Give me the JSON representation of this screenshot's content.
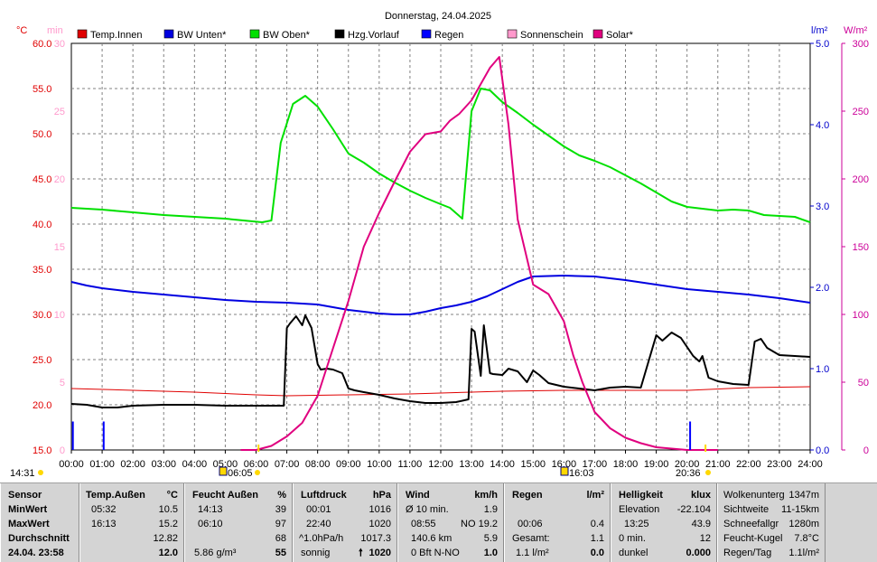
{
  "title": "Donnerstag, 24.04.2025",
  "axis_units": {
    "left_c": "°C",
    "left_min": "min",
    "right_lm2": "l/m²",
    "right_wm2": "W/m²"
  },
  "colors": {
    "temp_innen": "#e00000",
    "bw_unten": "#0000e0",
    "bw_oben": "#00e000",
    "hzg_vorlauf": "#000000",
    "regen": "#0000ff",
    "sonnenschein": "#ff99cc",
    "solar": "#e0007f",
    "axis_c": "#e00000",
    "axis_min": "#ff99cc",
    "axis_lm2": "#0000cc",
    "axis_wm2": "#cc0099"
  },
  "event_labels": {
    "sunrise": "06:05",
    "sunset": "20:36",
    "t1": "14:31",
    "t2": "16:03"
  },
  "chart_data": {
    "type": "line",
    "title": "Donnerstag, 24.04.2025",
    "x_ticks": [
      "00:00",
      "01:00",
      "02:00",
      "03:00",
      "04:00",
      "05:00",
      "06:00",
      "07:00",
      "08:00",
      "09:00",
      "10:00",
      "11:00",
      "12:00",
      "13:00",
      "14:00",
      "15:00",
      "16:00",
      "17:00",
      "18:00",
      "19:00",
      "20:00",
      "21:00",
      "22:00",
      "23:00",
      "24:00"
    ],
    "xlim": [
      0,
      24
    ],
    "y_axes": {
      "temp_c": {
        "ylim": [
          15,
          60
        ],
        "ticks": [
          "15.0",
          "20.0",
          "25.0",
          "30.0",
          "35.0",
          "40.0",
          "45.0",
          "50.0",
          "55.0",
          "60.0"
        ]
      },
      "sun_min": {
        "ylim": [
          0,
          30
        ],
        "ticks": [
          "0",
          "5",
          "10",
          "15",
          "20",
          "25",
          "30"
        ]
      },
      "rain_lm2": {
        "ylim": [
          0,
          5
        ],
        "ticks": [
          "0.0",
          "1.0",
          "2.0",
          "3.0",
          "4.0",
          "5.0"
        ]
      },
      "solar_wm2": {
        "ylim": [
          0,
          300
        ],
        "ticks": [
          "0",
          "50",
          "100",
          "150",
          "200",
          "250",
          "300"
        ]
      }
    },
    "legend": [
      "Temp.Innen",
      "BW Unten*",
      "BW Oben*",
      "Hzg.Vorlauf",
      "Regen",
      "Sonnenschein",
      "Solar*"
    ],
    "legend_placement": "top",
    "grid": true,
    "series": [
      {
        "name": "Temp.Innen",
        "axis": "temp_c",
        "color": "#e00000",
        "x": [
          0,
          2,
          4,
          6,
          7,
          9,
          11,
          12,
          13,
          14,
          16,
          18,
          20,
          22,
          24
        ],
        "y": [
          21.8,
          21.6,
          21.4,
          21.1,
          21.0,
          21.1,
          21.2,
          21.3,
          21.4,
          21.5,
          21.6,
          21.6,
          21.6,
          21.9,
          22.0
        ]
      },
      {
        "name": "BW Unten*",
        "axis": "temp_c",
        "color": "#0000e0",
        "x": [
          0,
          0.5,
          1,
          2,
          3,
          4,
          5,
          6,
          7,
          8,
          8.5,
          9,
          9.5,
          10,
          10.5,
          11,
          11.5,
          12,
          12.5,
          13,
          13.5,
          14,
          14.5,
          15,
          16,
          17,
          18,
          19,
          20,
          21,
          22,
          23,
          24
        ],
        "y": [
          33.6,
          33.2,
          32.9,
          32.5,
          32.2,
          31.9,
          31.6,
          31.4,
          31.3,
          31.1,
          30.8,
          30.5,
          30.3,
          30.1,
          30.0,
          30.0,
          30.3,
          30.7,
          31.0,
          31.4,
          32.0,
          32.8,
          33.6,
          34.2,
          34.3,
          34.2,
          33.8,
          33.3,
          32.8,
          32.5,
          32.2,
          31.8,
          31.3
        ]
      },
      {
        "name": "BW Oben*",
        "axis": "temp_c",
        "color": "#00e000",
        "x": [
          0,
          1,
          2,
          3,
          4,
          5,
          6.2,
          6.5,
          6.8,
          7.2,
          7.6,
          8,
          8.5,
          9,
          9.5,
          10,
          10.5,
          11,
          11.5,
          12,
          12.3,
          12.7,
          13,
          13.3,
          13.6,
          14,
          14.5,
          15,
          15.5,
          16,
          16.5,
          17,
          17.5,
          18,
          18.5,
          19,
          19.5,
          20,
          20.5,
          21,
          21.5,
          22,
          22.5,
          23,
          23.5,
          24
        ],
        "y": [
          41.8,
          41.6,
          41.3,
          41.0,
          40.8,
          40.6,
          40.2,
          40.4,
          49.0,
          53.3,
          54.2,
          53.0,
          50.5,
          47.8,
          46.8,
          45.6,
          44.6,
          43.7,
          42.9,
          42.2,
          41.8,
          40.6,
          52.5,
          55.0,
          54.8,
          53.5,
          52.3,
          51.0,
          49.8,
          48.6,
          47.6,
          47.0,
          46.3,
          45.4,
          44.5,
          43.5,
          42.5,
          41.9,
          41.7,
          41.5,
          41.6,
          41.5,
          41.0,
          40.9,
          40.8,
          40.2
        ]
      },
      {
        "name": "Hzg.Vorlauf",
        "axis": "temp_c",
        "color": "#000000",
        "x": [
          0,
          0.5,
          1,
          1.5,
          2,
          3,
          4,
          5,
          6,
          6.9,
          7.0,
          7.1,
          7.3,
          7.5,
          7.6,
          7.8,
          8.0,
          8.1,
          8.3,
          8.5,
          8.8,
          9.0,
          9.2,
          9.5,
          10,
          10.5,
          11,
          11.5,
          12,
          12.5,
          12.9,
          13.0,
          13.1,
          13.3,
          13.4,
          13.5,
          13.6,
          13.7,
          14.0,
          14.2,
          14.5,
          14.8,
          15.0,
          15.2,
          15.5,
          16,
          16.5,
          17,
          17.5,
          18,
          18.5,
          19.0,
          19.2,
          19.5,
          19.8,
          20.2,
          20.4,
          20.5,
          20.7,
          21,
          21.5,
          22,
          22.2,
          22.4,
          22.6,
          23,
          23.5,
          24
        ],
        "y": [
          20.1,
          20.0,
          19.7,
          19.7,
          19.9,
          20.0,
          20.0,
          19.9,
          19.9,
          19.9,
          28.5,
          29.0,
          29.8,
          28.8,
          29.9,
          28.5,
          24.5,
          23.9,
          24.0,
          23.9,
          23.5,
          21.8,
          21.6,
          21.4,
          21.1,
          20.7,
          20.4,
          20.2,
          20.2,
          20.3,
          20.6,
          28.4,
          28.1,
          23.2,
          28.8,
          26.1,
          23.5,
          23.4,
          23.3,
          24.0,
          23.7,
          22.5,
          23.8,
          23.3,
          22.4,
          22.0,
          21.8,
          21.6,
          21.9,
          22.0,
          21.9,
          27.7,
          27.1,
          28.0,
          27.4,
          25.4,
          24.8,
          25.4,
          23.0,
          22.6,
          22.3,
          22.2,
          27.0,
          27.3,
          26.3,
          25.5,
          25.4,
          25.3
        ]
      },
      {
        "name": "Solar*",
        "axis": "solar_wm2",
        "color": "#e0007f",
        "x": [
          5.5,
          6,
          6.5,
          7,
          7.5,
          8,
          8.5,
          9,
          9.5,
          10,
          10.5,
          11,
          11.5,
          12,
          12.3,
          12.6,
          13,
          13.3,
          13.6,
          13.9,
          14.2,
          14.5,
          15,
          15.5,
          16,
          16.3,
          16.6,
          17,
          17.5,
          18,
          18.5,
          19,
          19.5,
          20,
          20.5,
          21
        ],
        "y": [
          0,
          0,
          3,
          10,
          20,
          40,
          75,
          110,
          150,
          175,
          198,
          220,
          233,
          235,
          243,
          248,
          258,
          270,
          282,
          290,
          240,
          170,
          122,
          115,
          95,
          70,
          50,
          28,
          16,
          9,
          5,
          2,
          1,
          0,
          0,
          0
        ]
      },
      {
        "name": "Regen",
        "axis": "rain_lm2",
        "color": "#0000ff",
        "type": "bars",
        "x": [
          0.05,
          1.05,
          20.1
        ],
        "y": [
          0.35,
          0.35,
          0.35
        ]
      }
    ],
    "markers": [
      {
        "label": "06:05",
        "x": 6.08
      },
      {
        "label": "20:36",
        "x": 20.6
      }
    ]
  },
  "table": {
    "sensor": {
      "header": "Sensor",
      "rows": [
        "MinWert",
        "MaxWert",
        "Durchschnitt",
        "24.04. 23:58"
      ]
    },
    "temp_aussen": {
      "header": "Temp.Außen",
      "unit": "°C",
      "rows": [
        [
          "05:32",
          "10.5"
        ],
        [
          "16:13",
          "15.2"
        ],
        [
          "",
          "12.82"
        ],
        [
          "",
          "12.0"
        ]
      ]
    },
    "feucht_aussen": {
      "header": "Feucht Außen",
      "unit": "%",
      "rows": [
        [
          "14:13",
          "39"
        ],
        [
          "06:10",
          "97"
        ],
        [
          "",
          "68"
        ],
        [
          "5.86 g/m³",
          "55"
        ]
      ]
    },
    "luftdruck": {
      "header": "Luftdruck",
      "unit": "hPa",
      "rows": [
        [
          "00:01",
          "1016"
        ],
        [
          "22:40",
          "1020"
        ],
        [
          "^1.0hPa/h",
          "1017.3"
        ],
        [
          "sonnig",
          "1020"
        ]
      ]
    },
    "wind": {
      "header": "Wind",
      "unit": "km/h",
      "rows": [
        [
          "Ø 10 min.",
          "1.9"
        ],
        [
          "08:55",
          "NO 19.2"
        ],
        [
          "140.6 km",
          "5.9"
        ],
        [
          "0 Bft N-NO",
          "1.0"
        ]
      ]
    },
    "regen": {
      "header": "Regen",
      "unit": "l/m²",
      "rows": [
        [
          "",
          ""
        ],
        [
          "00:06",
          "0.4"
        ],
        [
          "Gesamt:",
          "1.1"
        ],
        [
          "1.1 l/m²",
          "0.0"
        ]
      ]
    },
    "helligkeit": {
      "header": "Helligkeit",
      "unit": "klux",
      "rows": [
        [
          "Elevation",
          "-22.104"
        ],
        [
          "13:25",
          "43.9"
        ],
        [
          "0 min.",
          "12"
        ],
        [
          "dunkel",
          "0.000"
        ]
      ]
    },
    "extra": {
      "rows": [
        [
          "Wolkenunterg",
          "1347m"
        ],
        [
          "Sichtweite",
          "11-15km"
        ],
        [
          "Schneefallgr",
          "1280m"
        ],
        [
          "Feucht-Kugel",
          "7.8°C"
        ],
        [
          "Regen/Tag",
          "1.1l/m²"
        ]
      ]
    }
  }
}
